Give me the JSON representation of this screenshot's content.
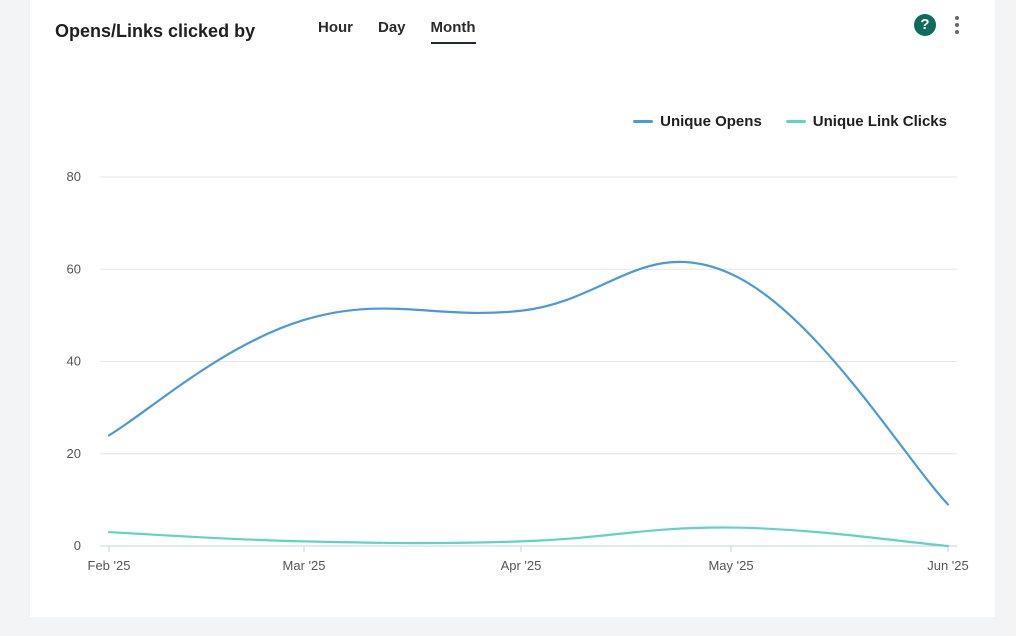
{
  "header": {
    "title": "Opens/Links clicked by",
    "tabs": [
      "Hour",
      "Day",
      "Month"
    ],
    "active_tab": "Month",
    "help_glyph": "?"
  },
  "chart_data": {
    "type": "line",
    "x": [
      "Feb '25",
      "Mar '25",
      "Apr '25",
      "May '25",
      "Jun '25"
    ],
    "ylim": [
      0,
      80
    ],
    "yticks": [
      0,
      20,
      40,
      60,
      80
    ],
    "grid": true,
    "legend_position": "top-right",
    "series": [
      {
        "name": "Unique Opens",
        "color": "#4a9ad9",
        "values": [
          24,
          49,
          51,
          59,
          9
        ]
      },
      {
        "name": "Unique Link Clicks",
        "color": "#5fd4c4",
        "values": [
          3,
          1,
          1,
          4,
          0
        ]
      }
    ]
  },
  "icons": {
    "help": "help-circle-icon",
    "menu": "more-vertical-icon"
  }
}
